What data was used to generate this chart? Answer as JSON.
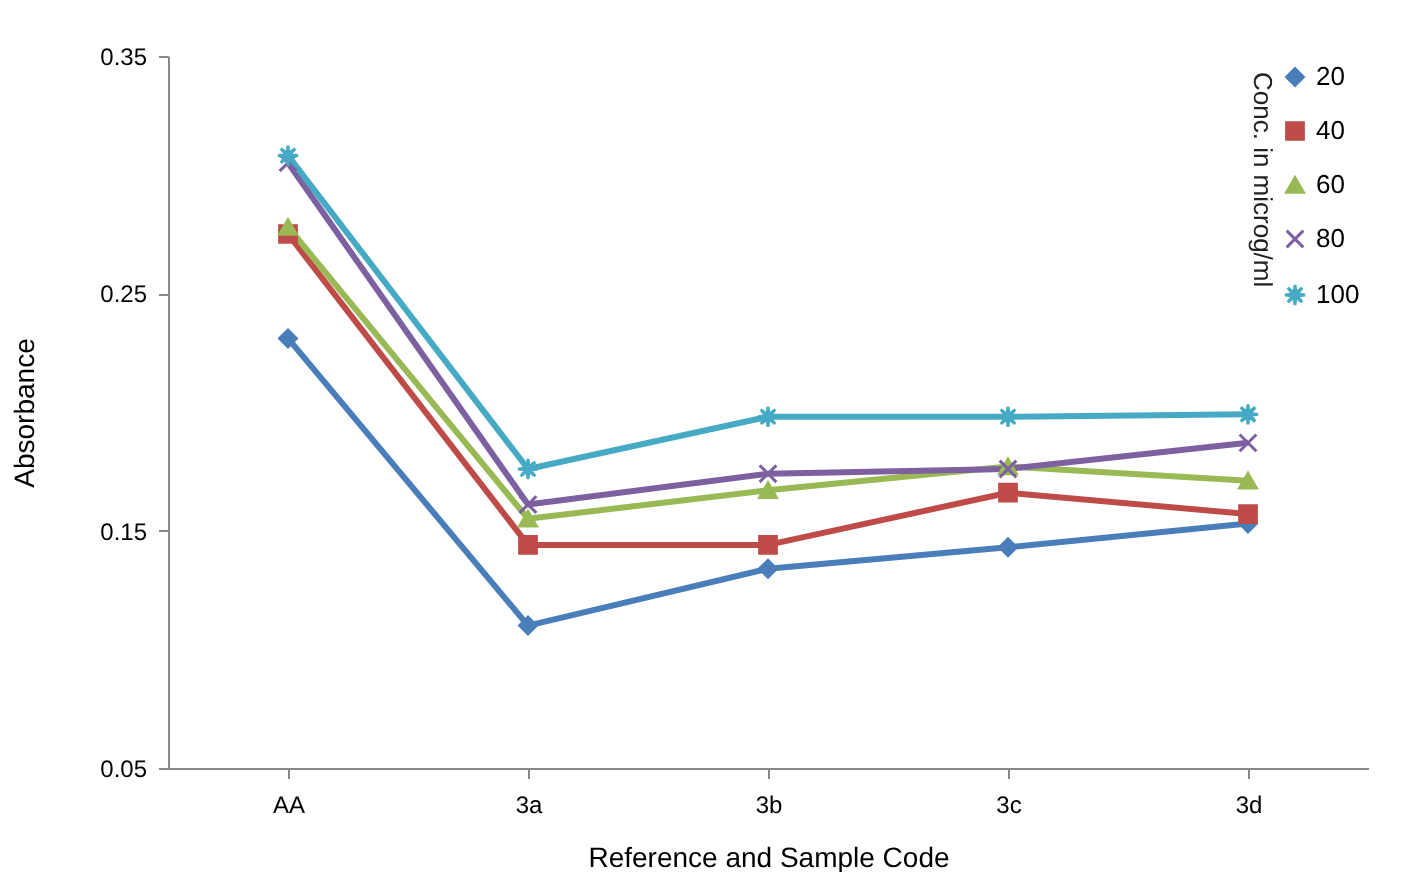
{
  "chart_data": {
    "type": "line",
    "xlabel": "Reference  and Sample Code",
    "ylabel": "Absorbance",
    "legend_title": "Conc. in microg/ml",
    "categories": [
      "AA",
      "3a",
      "3b",
      "3c",
      "3d"
    ],
    "ylim": [
      0.05,
      0.35
    ],
    "yticks": [
      0.05,
      0.15,
      0.25,
      0.35
    ],
    "grid": false,
    "legend": "top right",
    "line_style": "solid",
    "series": [
      {
        "name": "20",
        "color": "#4a7ebb",
        "marker": "diamond",
        "values": [
          0.231,
          0.11,
          0.134,
          0.143,
          0.153
        ]
      },
      {
        "name": "40",
        "color": "#be4b48",
        "marker": "square",
        "values": [
          0.275,
          0.144,
          0.144,
          0.166,
          0.157
        ]
      },
      {
        "name": "60",
        "color": "#98b954",
        "marker": "triangle",
        "values": [
          0.278,
          0.155,
          0.167,
          0.177,
          0.171
        ]
      },
      {
        "name": "80",
        "color": "#7d60a0",
        "marker": "cross",
        "values": [
          0.305,
          0.161,
          0.174,
          0.176,
          0.187
        ]
      },
      {
        "name": "100",
        "color": "#46aac5",
        "marker": "star",
        "values": [
          0.308,
          0.176,
          0.198,
          0.198,
          0.199
        ]
      }
    ]
  }
}
